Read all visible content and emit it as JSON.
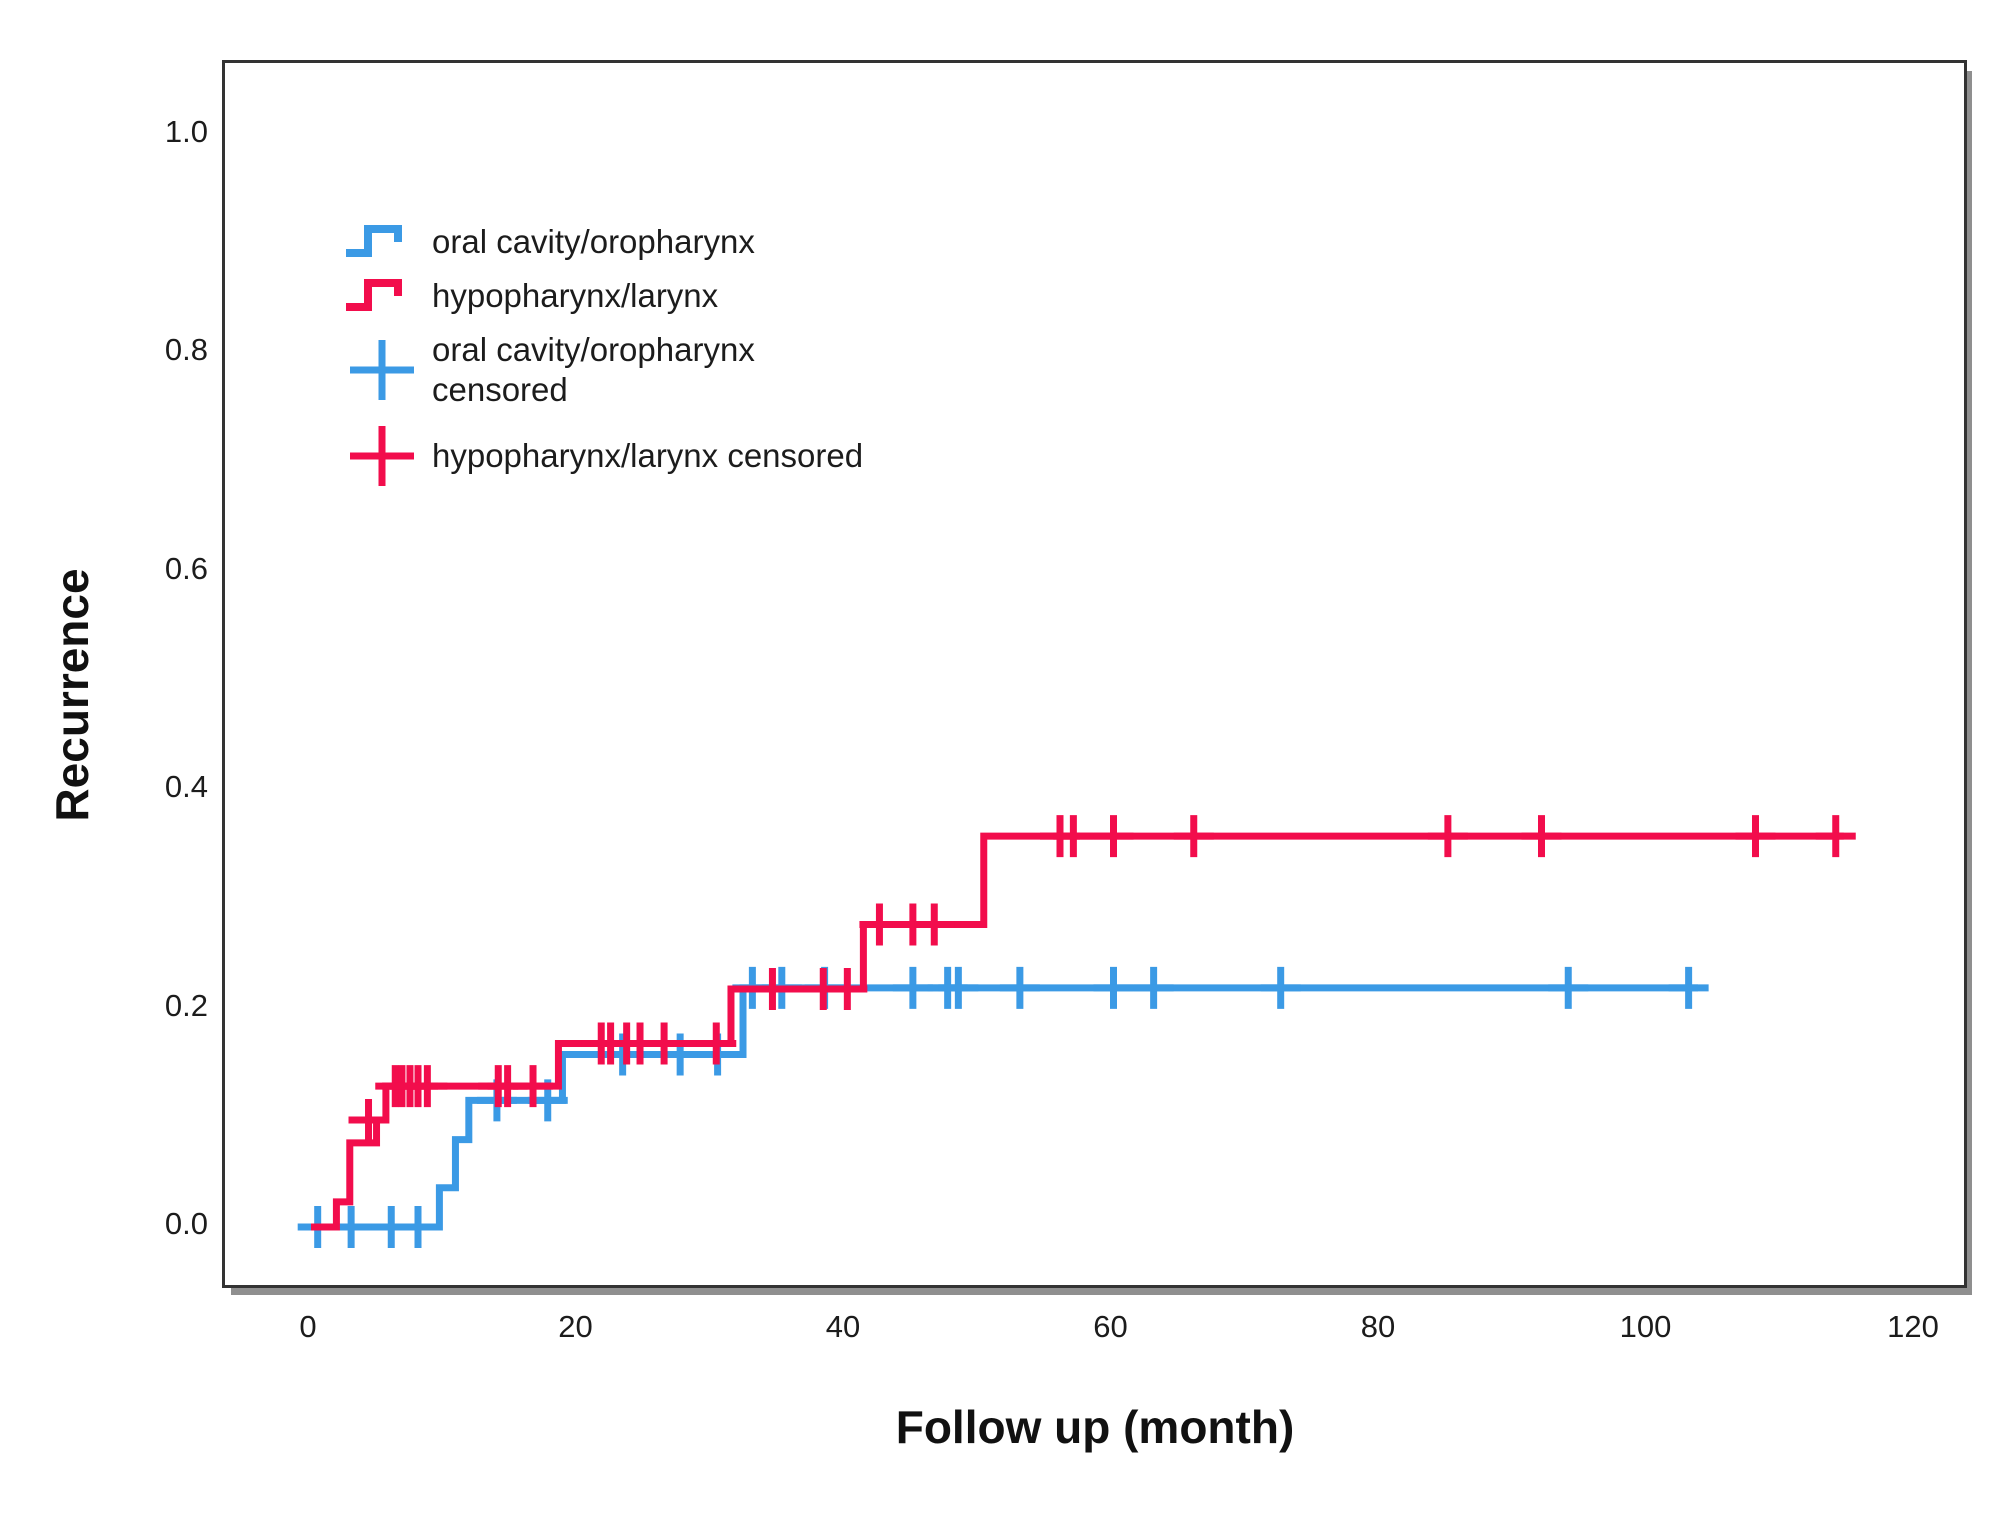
{
  "figure": {
    "y_axis_title": "Recurrence",
    "x_axis_title": "Follow up (month)"
  },
  "colors": {
    "blue": "#3B9AE5",
    "red": "#F20D4C",
    "text": "#1C1C1C",
    "frame": "#333333",
    "shadow": "#8F8F8F"
  },
  "legend": [
    {
      "label": "oral cavity/oropharynx",
      "type": "line",
      "color_key": "blue"
    },
    {
      "label": "hypopharynx/larynx",
      "type": "line",
      "color_key": "red"
    },
    {
      "label": "oral cavity/oropharynx\ncensored",
      "type": "censor",
      "color_key": "blue"
    },
    {
      "label": "hypopharynx/larynx censored",
      "type": "censor",
      "color_key": "red"
    }
  ],
  "axis_tick_labels": {
    "x": [
      "0",
      "20",
      "40",
      "60",
      "80",
      "100",
      "120"
    ],
    "y": [
      "0.0",
      "0.2",
      "0.4",
      "0.6",
      "0.8",
      "1.0"
    ]
  },
  "chart_data": {
    "type": "line",
    "subtype": "kaplan-meier-cumulative-incidence-steps",
    "title": "",
    "xlabel": "Follow up (month)",
    "ylabel": "Recurrence",
    "xlim": [
      0,
      120
    ],
    "ylim": [
      0.0,
      1.0
    ],
    "x_ticks": [
      0,
      20,
      40,
      60,
      80,
      100,
      120
    ],
    "y_ticks": [
      0.0,
      0.2,
      0.4,
      0.6,
      0.8,
      1.0
    ],
    "grid": false,
    "legend_position": "upper-left-inside",
    "series": [
      {
        "name": "oral cavity/oropharynx",
        "color_key": "blue",
        "steps": [
          [
            0,
            0.0
          ],
          [
            9.6,
            0.036
          ],
          [
            10.8,
            0.08
          ],
          [
            11.8,
            0.116
          ],
          [
            18.8,
            0.158
          ],
          [
            32.3,
            0.219
          ]
        ],
        "end_x": 103.7,
        "censored": [
          [
            0.5,
            0.0
          ],
          [
            3,
            0.0
          ],
          [
            6,
            0.0
          ],
          [
            8,
            0.0
          ],
          [
            13.9,
            0.116
          ],
          [
            17.7,
            0.116
          ],
          [
            23.3,
            0.158
          ],
          [
            27.6,
            0.158
          ],
          [
            30.4,
            0.158
          ],
          [
            33,
            0.219
          ],
          [
            35.2,
            0.219
          ],
          [
            38.4,
            0.219
          ],
          [
            45,
            0.219
          ],
          [
            47.6,
            0.219
          ],
          [
            48.4,
            0.219
          ],
          [
            53,
            0.219
          ],
          [
            60,
            0.219
          ],
          [
            63,
            0.219
          ],
          [
            72.5,
            0.219
          ],
          [
            94,
            0.219
          ],
          [
            103,
            0.219
          ]
        ]
      },
      {
        "name": "hypopharynx/larynx",
        "color_key": "red",
        "steps": [
          [
            0,
            0.0
          ],
          [
            1.9,
            0.023
          ],
          [
            2.9,
            0.077
          ],
          [
            4.9,
            0.098
          ],
          [
            5.6,
            0.129
          ],
          [
            18.5,
            0.168
          ],
          [
            31.4,
            0.218
          ],
          [
            41.3,
            0.277
          ],
          [
            50.3,
            0.358
          ]
        ],
        "end_x": 114.6,
        "censored": [
          [
            4.3,
            0.098
          ],
          [
            6.3,
            0.129
          ],
          [
            6.8,
            0.129
          ],
          [
            7.4,
            0.129
          ],
          [
            8.0,
            0.129
          ],
          [
            8.7,
            0.129
          ],
          [
            14.0,
            0.129
          ],
          [
            14.7,
            0.129
          ],
          [
            16.6,
            0.129
          ],
          [
            21.7,
            0.168
          ],
          [
            22.4,
            0.168
          ],
          [
            23.6,
            0.168
          ],
          [
            24.6,
            0.168
          ],
          [
            26.4,
            0.168
          ],
          [
            30.3,
            0.168
          ],
          [
            34.5,
            0.218
          ],
          [
            38.3,
            0.218
          ],
          [
            40.1,
            0.218
          ],
          [
            42.5,
            0.277
          ],
          [
            45,
            0.277
          ],
          [
            46.6,
            0.277
          ],
          [
            56,
            0.358
          ],
          [
            57,
            0.358
          ],
          [
            60,
            0.358
          ],
          [
            66,
            0.358
          ],
          [
            85,
            0.358
          ],
          [
            92,
            0.358
          ],
          [
            108,
            0.358
          ],
          [
            114,
            0.358
          ]
        ]
      }
    ]
  }
}
